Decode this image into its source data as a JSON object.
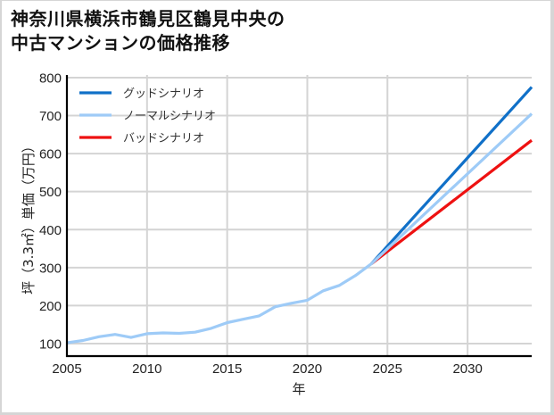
{
  "title": {
    "line1": "神奈川県横浜市鶴見区鶴見中央の",
    "line2": "中古マンションの価格推移"
  },
  "colors": {
    "good": "#1070c8",
    "normal": "#9ecbf7",
    "bad": "#ee1111",
    "grid": "#d4d4d4",
    "axis": "#000000"
  },
  "chart_data": {
    "type": "line",
    "title": "神奈川県横浜市鶴見区鶴見中央の中古マンションの価格推移",
    "xlabel": "年",
    "ylabel": "坪（3.3㎡）単価（万円）",
    "xlim": [
      2005,
      2034
    ],
    "ylim": [
      67,
      807
    ],
    "grid": true,
    "legend_position": "upper left",
    "x_ticks": [
      2005,
      2010,
      2015,
      2020,
      2025,
      2030
    ],
    "y_ticks": [
      100,
      200,
      300,
      400,
      500,
      600,
      700,
      800
    ],
    "series": [
      {
        "name": "グッドシナリオ",
        "color": "#1070c8",
        "x": [
          2024,
          2034
        ],
        "values": [
          310,
          775
        ]
      },
      {
        "name": "バッドシナリオ",
        "color": "#ee1111",
        "x": [
          2024,
          2034
        ],
        "values": [
          310,
          635
        ]
      },
      {
        "name": "ノーマルシナリオ",
        "color": "#9ecbf7",
        "x": [
          2005,
          2006,
          2007,
          2008,
          2009,
          2010,
          2011,
          2012,
          2013,
          2014,
          2015,
          2016,
          2017,
          2018,
          2019,
          2020,
          2021,
          2022,
          2023,
          2024,
          2034
        ],
        "values": [
          102,
          108,
          118,
          124,
          116,
          126,
          128,
          127,
          130,
          140,
          155,
          164,
          173,
          197,
          206,
          214,
          239,
          253,
          279,
          310,
          705
        ]
      }
    ],
    "legend_entries": [
      "グッドシナリオ",
      "ノーマルシナリオ",
      "バッドシナリオ"
    ]
  }
}
